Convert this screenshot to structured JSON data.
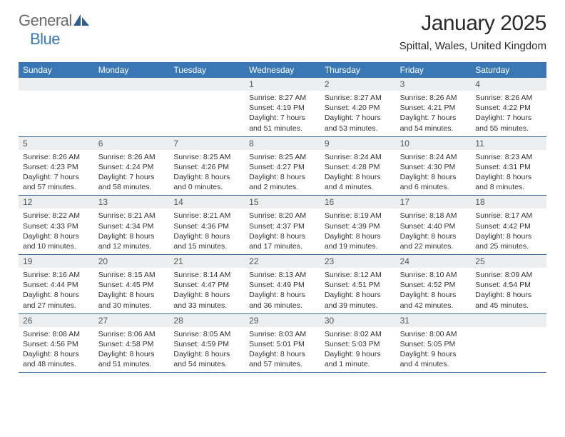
{
  "brand": {
    "part1": "General",
    "part2": "Blue"
  },
  "title": "January 2025",
  "location": "Spittal, Wales, United Kingdom",
  "colors": {
    "header_bg": "#3a78b5",
    "header_fg": "#ffffff",
    "daynum_bg": "#eceef0",
    "week_border": "#3a6a9a",
    "logo_gray": "#6b6b6b",
    "logo_blue": "#3a78b5"
  },
  "day_names": [
    "Sunday",
    "Monday",
    "Tuesday",
    "Wednesday",
    "Thursday",
    "Friday",
    "Saturday"
  ],
  "weeks": [
    [
      {
        "n": "",
        "sr": "",
        "ss": "",
        "dl": ""
      },
      {
        "n": "",
        "sr": "",
        "ss": "",
        "dl": ""
      },
      {
        "n": "",
        "sr": "",
        "ss": "",
        "dl": ""
      },
      {
        "n": "1",
        "sr": "8:27 AM",
        "ss": "4:19 PM",
        "dl": "7 hours and 51 minutes."
      },
      {
        "n": "2",
        "sr": "8:27 AM",
        "ss": "4:20 PM",
        "dl": "7 hours and 53 minutes."
      },
      {
        "n": "3",
        "sr": "8:26 AM",
        "ss": "4:21 PM",
        "dl": "7 hours and 54 minutes."
      },
      {
        "n": "4",
        "sr": "8:26 AM",
        "ss": "4:22 PM",
        "dl": "7 hours and 55 minutes."
      }
    ],
    [
      {
        "n": "5",
        "sr": "8:26 AM",
        "ss": "4:23 PM",
        "dl": "7 hours and 57 minutes."
      },
      {
        "n": "6",
        "sr": "8:26 AM",
        "ss": "4:24 PM",
        "dl": "7 hours and 58 minutes."
      },
      {
        "n": "7",
        "sr": "8:25 AM",
        "ss": "4:26 PM",
        "dl": "8 hours and 0 minutes."
      },
      {
        "n": "8",
        "sr": "8:25 AM",
        "ss": "4:27 PM",
        "dl": "8 hours and 2 minutes."
      },
      {
        "n": "9",
        "sr": "8:24 AM",
        "ss": "4:28 PM",
        "dl": "8 hours and 4 minutes."
      },
      {
        "n": "10",
        "sr": "8:24 AM",
        "ss": "4:30 PM",
        "dl": "8 hours and 6 minutes."
      },
      {
        "n": "11",
        "sr": "8:23 AM",
        "ss": "4:31 PM",
        "dl": "8 hours and 8 minutes."
      }
    ],
    [
      {
        "n": "12",
        "sr": "8:22 AM",
        "ss": "4:33 PM",
        "dl": "8 hours and 10 minutes."
      },
      {
        "n": "13",
        "sr": "8:21 AM",
        "ss": "4:34 PM",
        "dl": "8 hours and 12 minutes."
      },
      {
        "n": "14",
        "sr": "8:21 AM",
        "ss": "4:36 PM",
        "dl": "8 hours and 15 minutes."
      },
      {
        "n": "15",
        "sr": "8:20 AM",
        "ss": "4:37 PM",
        "dl": "8 hours and 17 minutes."
      },
      {
        "n": "16",
        "sr": "8:19 AM",
        "ss": "4:39 PM",
        "dl": "8 hours and 19 minutes."
      },
      {
        "n": "17",
        "sr": "8:18 AM",
        "ss": "4:40 PM",
        "dl": "8 hours and 22 minutes."
      },
      {
        "n": "18",
        "sr": "8:17 AM",
        "ss": "4:42 PM",
        "dl": "8 hours and 25 minutes."
      }
    ],
    [
      {
        "n": "19",
        "sr": "8:16 AM",
        "ss": "4:44 PM",
        "dl": "8 hours and 27 minutes."
      },
      {
        "n": "20",
        "sr": "8:15 AM",
        "ss": "4:45 PM",
        "dl": "8 hours and 30 minutes."
      },
      {
        "n": "21",
        "sr": "8:14 AM",
        "ss": "4:47 PM",
        "dl": "8 hours and 33 minutes."
      },
      {
        "n": "22",
        "sr": "8:13 AM",
        "ss": "4:49 PM",
        "dl": "8 hours and 36 minutes."
      },
      {
        "n": "23",
        "sr": "8:12 AM",
        "ss": "4:51 PM",
        "dl": "8 hours and 39 minutes."
      },
      {
        "n": "24",
        "sr": "8:10 AM",
        "ss": "4:52 PM",
        "dl": "8 hours and 42 minutes."
      },
      {
        "n": "25",
        "sr": "8:09 AM",
        "ss": "4:54 PM",
        "dl": "8 hours and 45 minutes."
      }
    ],
    [
      {
        "n": "26",
        "sr": "8:08 AM",
        "ss": "4:56 PM",
        "dl": "8 hours and 48 minutes."
      },
      {
        "n": "27",
        "sr": "8:06 AM",
        "ss": "4:58 PM",
        "dl": "8 hours and 51 minutes."
      },
      {
        "n": "28",
        "sr": "8:05 AM",
        "ss": "4:59 PM",
        "dl": "8 hours and 54 minutes."
      },
      {
        "n": "29",
        "sr": "8:03 AM",
        "ss": "5:01 PM",
        "dl": "8 hours and 57 minutes."
      },
      {
        "n": "30",
        "sr": "8:02 AM",
        "ss": "5:03 PM",
        "dl": "9 hours and 1 minute."
      },
      {
        "n": "31",
        "sr": "8:00 AM",
        "ss": "5:05 PM",
        "dl": "9 hours and 4 minutes."
      },
      {
        "n": "",
        "sr": "",
        "ss": "",
        "dl": ""
      }
    ]
  ],
  "labels": {
    "sunrise": "Sunrise:",
    "sunset": "Sunset:",
    "daylight": "Daylight:"
  }
}
